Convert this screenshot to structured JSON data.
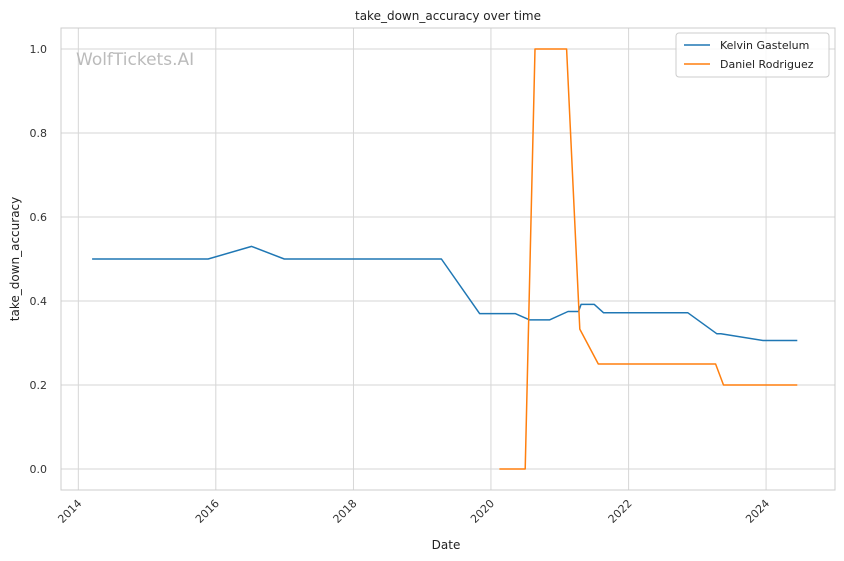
{
  "chart_data": {
    "type": "line",
    "title": "take_down_accuracy over time",
    "xlabel": "Date",
    "ylabel": "take_down_accuracy",
    "watermark": "WolfTickets.AI",
    "x_ticks": [
      "2014",
      "2016",
      "2018",
      "2020",
      "2022",
      "2024"
    ],
    "y_ticks": [
      "0.0",
      "0.2",
      "0.4",
      "0.6",
      "0.8",
      "1.0"
    ],
    "xlim": [
      "2013-10-01",
      "2025-01-01"
    ],
    "ylim": [
      -0.05,
      1.05
    ],
    "grid": true,
    "legend_position": "top-right",
    "series": [
      {
        "name": "Kelvin Gastelum",
        "color": "#1f77b4",
        "points": [
          [
            "2014-03-15",
            0.5
          ],
          [
            "2015-11-21",
            0.5
          ],
          [
            "2016-07-09",
            0.53
          ],
          [
            "2016-12-30",
            0.5
          ],
          [
            "2019-04-13",
            0.5
          ],
          [
            "2019-11-02",
            0.37
          ],
          [
            "2020-05-09",
            0.37
          ],
          [
            "2020-07-25",
            0.355
          ],
          [
            "2020-11-07",
            0.355
          ],
          [
            "2021-02-13",
            0.375
          ],
          [
            "2021-04-10",
            0.375
          ],
          [
            "2021-04-24",
            0.392
          ],
          [
            "2021-07-03",
            0.392
          ],
          [
            "2021-08-21",
            0.372
          ],
          [
            "2022-11-12",
            0.372
          ],
          [
            "2023-04-15",
            0.322
          ],
          [
            "2023-05-06",
            0.322
          ],
          [
            "2023-12-16",
            0.306
          ],
          [
            "2024-06-15",
            0.306
          ]
        ]
      },
      {
        "name": "Daniel Rodriguez",
        "color": "#ff7f0e",
        "points": [
          [
            "2020-02-15",
            0.0
          ],
          [
            "2020-07-01",
            0.0
          ],
          [
            "2020-08-22",
            1.0
          ],
          [
            "2021-02-06",
            1.0
          ],
          [
            "2021-04-17",
            0.333
          ],
          [
            "2021-07-24",
            0.25
          ],
          [
            "2023-04-08",
            0.25
          ],
          [
            "2023-05-20",
            0.2
          ],
          [
            "2024-06-15",
            0.2
          ]
        ]
      }
    ]
  }
}
